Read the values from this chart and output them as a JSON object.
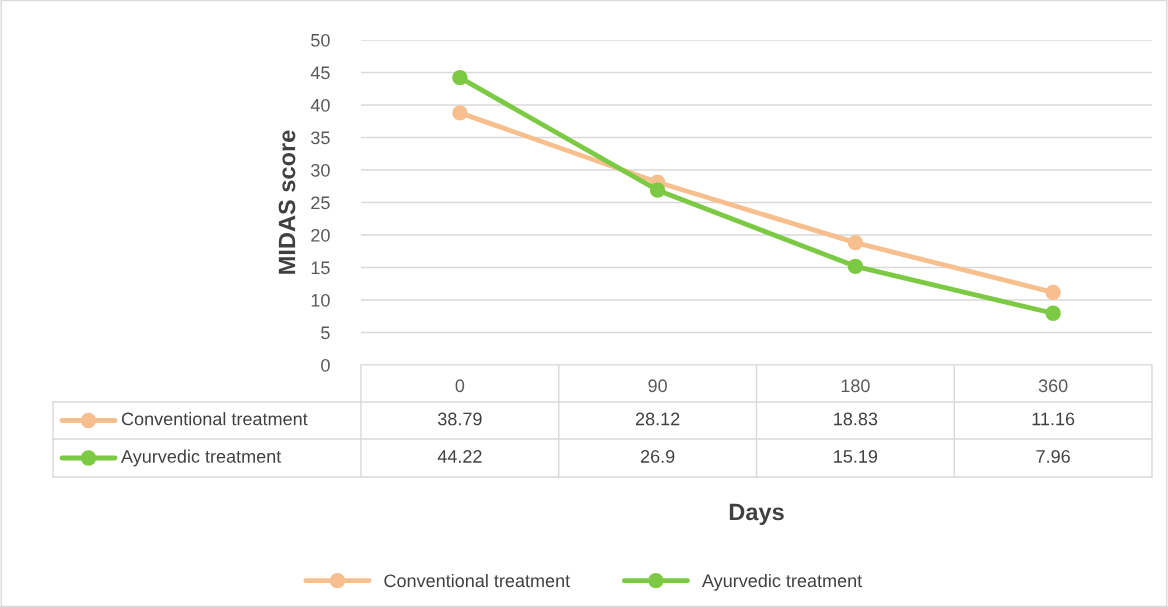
{
  "chart_data": {
    "type": "line",
    "categories": [
      "0",
      "90",
      "180",
      "360"
    ],
    "series": [
      {
        "name": "Conventional treatment",
        "color": "#f8bf8e",
        "values": [
          38.79,
          28.12,
          18.83,
          11.16
        ]
      },
      {
        "name": "Ayurvedic treatment",
        "color": "#7cc943",
        "values": [
          44.22,
          26.9,
          15.19,
          7.96
        ]
      }
    ],
    "xlabel": "Days",
    "ylabel": "MIDAS score",
    "ylim": [
      0,
      50
    ],
    "yticks": [
      0,
      5,
      10,
      15,
      20,
      25,
      30,
      35,
      40,
      45,
      50
    ],
    "grid": "y",
    "legend": "bottom",
    "marker": "circle",
    "line_style": "solid",
    "data_labels": true
  }
}
